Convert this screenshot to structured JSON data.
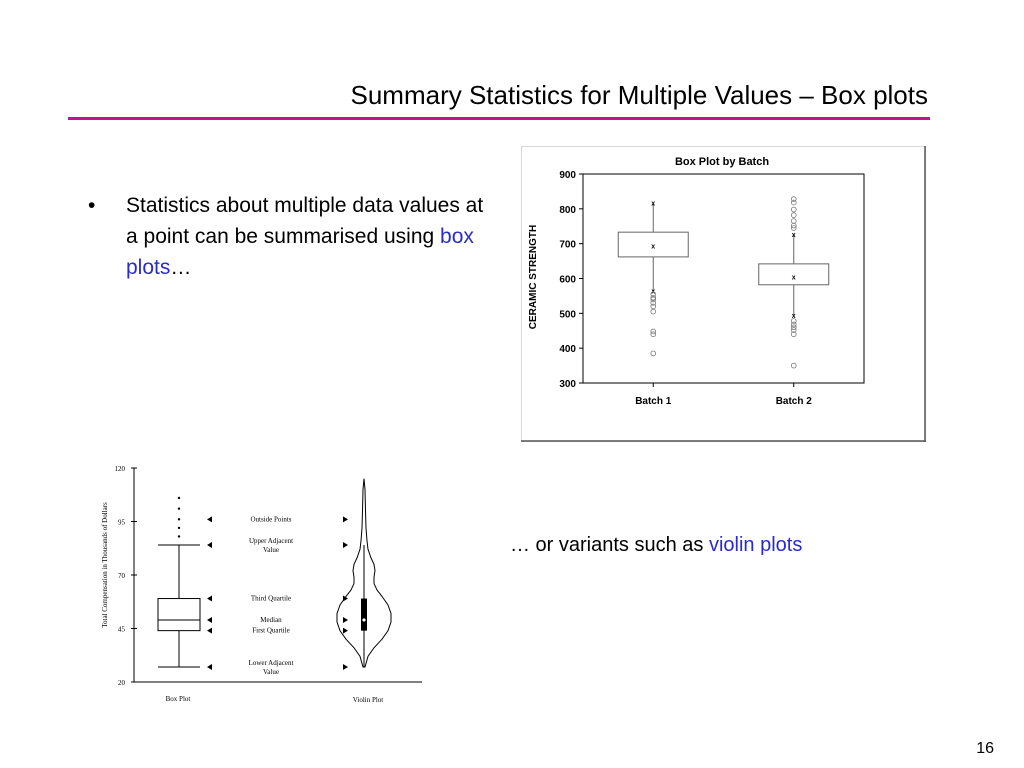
{
  "slide": {
    "title": "Summary Statistics for Multiple Values – Box plots",
    "bullet_marker": "•",
    "bullet_text_1": "Statistics about multiple data values at a point can be summarised using ",
    "bullet_link": "box plots",
    "bullet_text_2": "…",
    "caption_prefix": "… or variants such as ",
    "caption_link": "violin plots",
    "page_number": "16",
    "accent_color": "#c0148c",
    "link_color": "#2a2ad0"
  },
  "chart_data": [
    {
      "type": "box",
      "title": "Box Plot by Batch",
      "xlabel": "",
      "ylabel": "CERAMIC STRENGTH",
      "ylim": [
        300,
        900
      ],
      "yticks": [
        300,
        400,
        500,
        600,
        700,
        800,
        900
      ],
      "categories": [
        "Batch 1",
        "Batch 2"
      ],
      "boxes": [
        {
          "name": "Batch 1",
          "q1": 662,
          "median": 695,
          "q3": 733,
          "whisker_low": 565,
          "whisker_high": 818,
          "outliers": [
            555,
            545,
            540,
            530,
            520,
            505,
            448,
            440,
            385
          ]
        },
        {
          "name": "Batch 2",
          "q1": 582,
          "median": 606,
          "q3": 642,
          "whisker_low": 495,
          "whisker_high": 728,
          "outliers": [
            828,
            818,
            798,
            782,
            765,
            752,
            745,
            478,
            468,
            460,
            452,
            440,
            350
          ]
        }
      ],
      "grid": false
    },
    {
      "type": "box_violin_diagram",
      "ylabel": "Total Compensation in Thousands of Dollars",
      "ylim": [
        20,
        120
      ],
      "yticks": [
        20,
        45,
        70,
        95,
        120
      ],
      "categories": [
        "Box Plot",
        "Violin Plot"
      ],
      "box": {
        "lower_adjacent": 27,
        "q1": 44,
        "median": 49,
        "q3": 59,
        "upper_adjacent": 84,
        "outliers": [
          88,
          92,
          96,
          101,
          106
        ]
      },
      "annotations": [
        "Outside Points",
        "Upper Adjacent Value",
        "Third Quartile",
        "Median",
        "First Quartile",
        "Lower Adjacent Value"
      ]
    }
  ]
}
